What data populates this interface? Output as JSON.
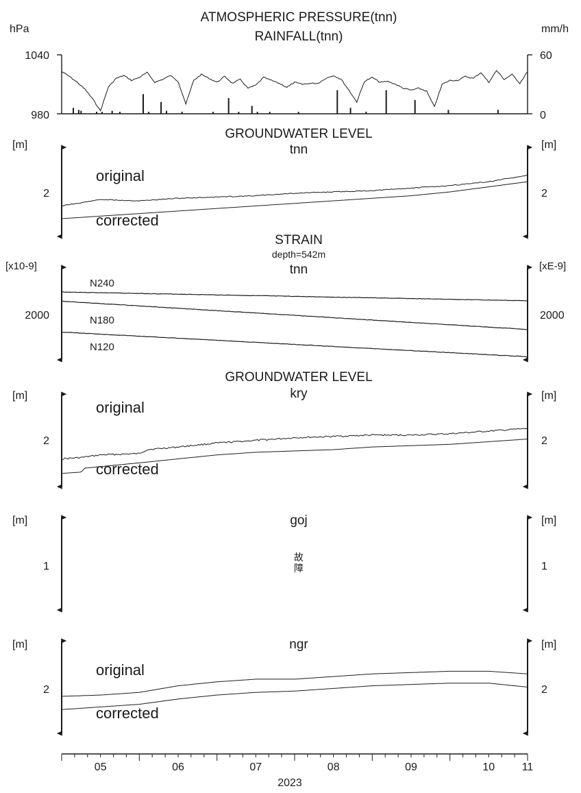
{
  "chart_data": [
    {
      "type": "line",
      "title": "ATMOSPHERIC PRESSURE(tnn)",
      "subtitle": "RAINFALL(tnn)",
      "ylabel_left": "hPa",
      "ylabel_right": "mm/h",
      "ylim_left": [
        980,
        1040
      ],
      "ylim_right": [
        0,
        60
      ],
      "yticks_left": [
        "1040",
        "980"
      ],
      "yticks_right": [
        "60",
        "0"
      ],
      "series": [
        {
          "axis": "left",
          "style": "line",
          "x": [
            0.0,
            0.1,
            0.2,
            0.3,
            0.4,
            0.5,
            0.6,
            0.7,
            0.8,
            0.9,
            1.0,
            1.1,
            1.2,
            1.3,
            1.4,
            1.5,
            1.6,
            1.7,
            1.8,
            1.9,
            2.0,
            2.1,
            2.2,
            2.3,
            2.4,
            2.5,
            2.6,
            2.7,
            2.8,
            2.9,
            3.0,
            3.1,
            3.2,
            3.3,
            3.4,
            3.5,
            3.6,
            3.7,
            3.8,
            3.9,
            4.0,
            4.1,
            4.2,
            4.3,
            4.4,
            4.5,
            4.6,
            4.7,
            4.8,
            4.9,
            5.0,
            5.1,
            5.2,
            5.3,
            5.4,
            5.5,
            5.6,
            5.7,
            5.8,
            5.9,
            6.0
          ],
          "values": [
            1023,
            1018,
            1012,
            1005,
            995,
            983,
            1007,
            1016,
            1019,
            1014,
            1017,
            1022,
            1012,
            1015,
            1019,
            1013,
            990,
            1014,
            1020,
            1016,
            1012,
            1018,
            1011,
            1015,
            1006,
            1009,
            1017,
            1014,
            1011,
            1007,
            1012,
            1010,
            1011,
            1011,
            1016,
            1019,
            1015,
            1004,
            992,
            1013,
            1017,
            1012,
            1013,
            1010,
            1006,
            1004,
            1006,
            1003,
            987,
            1010,
            1014,
            1014,
            1018,
            1016,
            1022,
            1012,
            1024,
            1015,
            1020,
            1011,
            1023
          ]
        },
        {
          "axis": "right",
          "style": "bar",
          "x": [
            0.15,
            0.22,
            0.25,
            0.45,
            0.52,
            0.65,
            0.75,
            1.05,
            1.12,
            1.28,
            1.35,
            1.55,
            1.95,
            2.15,
            2.28,
            2.45,
            2.52,
            2.68,
            3.05,
            3.55,
            3.72,
            3.92,
            4.18,
            4.55,
            4.98,
            5.62
          ],
          "values": [
            6,
            4,
            3,
            2,
            2,
            3,
            2,
            20,
            2,
            12,
            3,
            2,
            2,
            16,
            2,
            8,
            2,
            2,
            2,
            24,
            6,
            2,
            24,
            14,
            4,
            4
          ]
        }
      ]
    },
    {
      "type": "line",
      "title": "GROUNDWATER LEVEL",
      "subtitle": "tnn",
      "ylabel_left": "[m]",
      "ylabel_right": "[m]",
      "yticks_left": [
        "2"
      ],
      "yticks_right": [
        "2"
      ],
      "ylim": [
        1.7,
        2.4
      ],
      "series": [
        {
          "name": "original",
          "x": [
            0,
            0.5,
            1,
            1.5,
            2,
            2.5,
            3,
            3.5,
            4,
            4.5,
            5,
            5.5,
            6
          ],
          "values": [
            1.94,
            1.99,
            1.98,
            2.0,
            2.01,
            2.02,
            2.04,
            2.05,
            2.06,
            2.08,
            2.1,
            2.13,
            2.18
          ]
        },
        {
          "name": "corrected",
          "x": [
            0,
            0.5,
            1,
            1.5,
            2,
            2.5,
            3,
            3.5,
            4,
            4.5,
            5,
            5.5,
            6
          ],
          "values": [
            1.84,
            1.86,
            1.88,
            1.9,
            1.92,
            1.94,
            1.96,
            1.98,
            2.0,
            2.02,
            2.05,
            2.09,
            2.13
          ]
        }
      ]
    },
    {
      "type": "line",
      "title": "STRAIN",
      "note": "depth=542m",
      "subtitle": "tnn",
      "ylabel_left": "[x10-9]",
      "ylabel_right": "[xE-9]",
      "yticks_left": [
        "2000"
      ],
      "yticks_right": [
        "2000"
      ],
      "ylim": [
        1700,
        2300
      ],
      "series": [
        {
          "name": "N240",
          "x": [
            0,
            6
          ],
          "values": [
            2140,
            2083
          ]
        },
        {
          "name": "N180",
          "x": [
            0,
            6
          ],
          "values": [
            2080,
            1897
          ]
        },
        {
          "name": "N120",
          "x": [
            0,
            6
          ],
          "values": [
            1880,
            1720
          ]
        }
      ]
    },
    {
      "type": "line",
      "title": "GROUNDWATER LEVEL",
      "subtitle": "kry",
      "ylabel_left": "[m]",
      "ylabel_right": "[m]",
      "yticks_left": [
        "2"
      ],
      "yticks_right": [
        "2"
      ],
      "ylim": [
        1.7,
        2.4
      ],
      "series": [
        {
          "name": "original",
          "x": [
            0,
            0.25,
            0.5,
            1,
            1.1,
            1.5,
            2,
            2.5,
            3,
            3.5,
            4,
            4.5,
            5,
            5.5,
            6
          ],
          "values": [
            1.91,
            1.92,
            1.94,
            1.95,
            1.98,
            2.0,
            2.03,
            2.05,
            2.07,
            2.08,
            2.09,
            2.09,
            2.1,
            2.12,
            2.14
          ]
        },
        {
          "name": "corrected",
          "x": [
            0,
            0.25,
            0.3,
            1,
            1.5,
            2,
            2.5,
            3,
            3.5,
            4,
            4.5,
            5,
            5.5,
            6
          ],
          "values": [
            1.8,
            1.81,
            1.84,
            1.88,
            1.91,
            1.94,
            1.96,
            1.97,
            1.98,
            2.0,
            2.01,
            2.02,
            2.04,
            2.06
          ]
        }
      ]
    },
    {
      "type": "line",
      "title": "goj",
      "annotation": "故障",
      "ylabel_left": "[m]",
      "ylabel_right": "[m]",
      "yticks_left": [
        "1"
      ],
      "yticks_right": [
        "1"
      ],
      "series": []
    },
    {
      "type": "line",
      "title": "ngr",
      "ylabel_left": "[m]",
      "ylabel_right": "[m]",
      "yticks_left": [
        "2"
      ],
      "yticks_right": [
        "2"
      ],
      "ylim": [
        1.7,
        2.4
      ],
      "series": [
        {
          "name": "original",
          "x": [
            0,
            0.5,
            1,
            1.5,
            2,
            2.5,
            3,
            3.5,
            4,
            4.5,
            5,
            5.5,
            6
          ],
          "values": [
            1.98,
            1.99,
            2.01,
            2.06,
            2.09,
            2.11,
            2.11,
            2.13,
            2.15,
            2.16,
            2.17,
            2.17,
            2.15
          ]
        },
        {
          "name": "corrected",
          "x": [
            0,
            0.5,
            1,
            1.5,
            2,
            2.5,
            3,
            3.5,
            4,
            4.5,
            5,
            5.5,
            6
          ],
          "values": [
            1.88,
            1.9,
            1.92,
            1.96,
            1.99,
            2.01,
            2.02,
            2.04,
            2.06,
            2.07,
            2.08,
            2.08,
            2.05
          ]
        }
      ]
    }
  ],
  "x_axis": {
    "month_labels": [
      "05",
      "06",
      "07",
      "08",
      "09",
      "10",
      "11"
    ],
    "year": "2023"
  }
}
